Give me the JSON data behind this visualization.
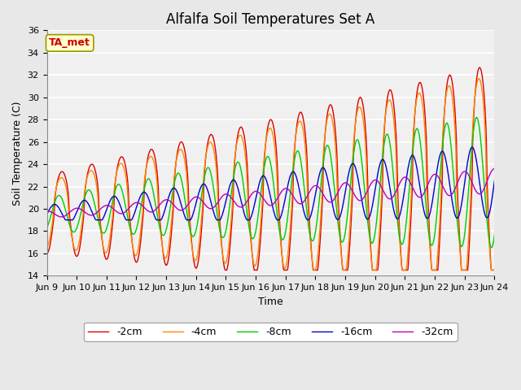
{
  "title": "Alfalfa Soil Temperatures Set A",
  "xlabel": "Time",
  "ylabel": "Soil Temperature (C)",
  "ylim": [
    14,
    36
  ],
  "yticks": [
    14,
    16,
    18,
    20,
    22,
    24,
    26,
    28,
    30,
    32,
    34,
    36
  ],
  "xtick_labels": [
    "Jun 9",
    "Jun 10",
    "Jun 11",
    "Jun 12",
    "Jun 13",
    "Jun 14",
    "Jun 15",
    "Jun 16",
    "Jun 17",
    "Jun 18",
    "Jun 19",
    "Jun 20",
    "Jun 21",
    "Jun 22",
    "Jun 23",
    "Jun 24"
  ],
  "legend_labels": [
    "-2cm",
    "-4cm",
    "-8cm",
    "-16cm",
    "-32cm"
  ],
  "line_colors": [
    "#dd0000",
    "#ff8800",
    "#00cc00",
    "#0000cc",
    "#bb00bb"
  ],
  "bg_color": "#e8e8e8",
  "plot_bg_color": "#f0f0f0",
  "annotation_text": "TA_met",
  "annotation_color": "#cc0000",
  "annotation_bg": "#ffffcc",
  "title_fontsize": 12,
  "axis_fontsize": 9,
  "tick_fontsize": 8,
  "legend_fontsize": 9
}
